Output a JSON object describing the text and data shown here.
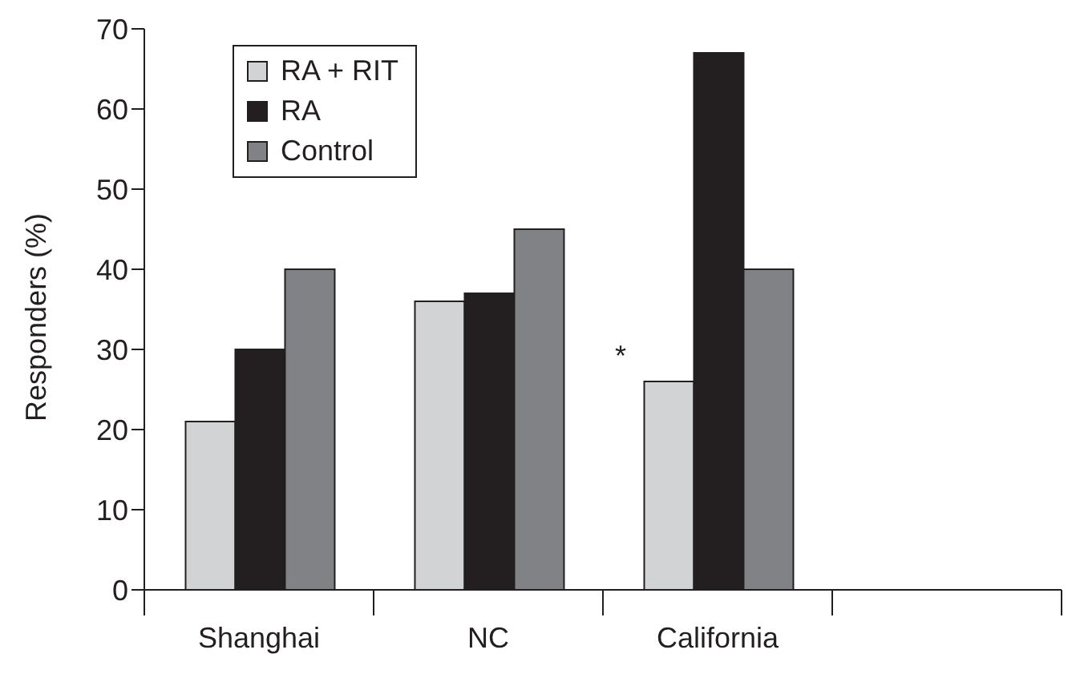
{
  "chart_data": {
    "type": "bar",
    "ylabel": "Responders (%)",
    "categories": [
      "Shanghai",
      "NC",
      "California",
      null
    ],
    "series": [
      {
        "name": "RA + RIT",
        "color": "#d1d3d4",
        "values": [
          21,
          36,
          26,
          null
        ]
      },
      {
        "name": "RA",
        "color": "#231f20",
        "values": [
          30,
          37,
          67,
          null
        ]
      },
      {
        "name": "Control",
        "color": "#808285",
        "values": [
          40,
          45,
          40,
          null
        ]
      }
    ],
    "ylim": [
      0,
      70
    ],
    "yticks": [
      0,
      10,
      20,
      30,
      40,
      50,
      60,
      70
    ],
    "grid": false,
    "legend": "top left",
    "annotations": [
      "*"
    ]
  }
}
